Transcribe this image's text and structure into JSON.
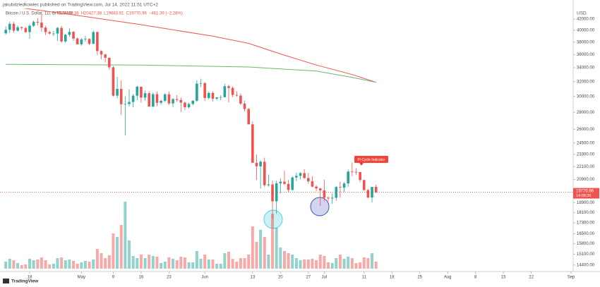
{
  "header": {
    "publisher": "jakubdzledkowiec published on TradingView.com, Jul 14, 2022 11:51 UTC+2",
    "symbol": "Bitcoin / U.S. Dollar, 1D, BITSTAMP",
    "values": [
      "O20235.36",
      "H20427.38",
      "L19683.91",
      "C19770.96",
      "−461.39 (−2.28%)"
    ]
  },
  "chart_data": {
    "type": "candlestick",
    "log_scale": true,
    "up_color": "#26a69a",
    "down_color": "#ef5350",
    "y_unit": "USD",
    "x": [
      "Apr 12",
      "Apr 13",
      "Apr 14",
      "Apr 15",
      "Apr 16",
      "Apr 17",
      "Apr 18",
      "Apr 19",
      "Apr 20",
      "Apr 21",
      "Apr 22",
      "Apr 23",
      "Apr 24",
      "Apr 25",
      "Apr 26",
      "Apr 27",
      "Apr 28",
      "Apr 29",
      "Apr 30",
      "May 1",
      "May 2",
      "May 3",
      "May 4",
      "May 5",
      "May 6",
      "May 7",
      "May 8",
      "May 9",
      "May 10",
      "May 11",
      "May 12",
      "May 13",
      "May 14",
      "May 15",
      "May 16",
      "May 17",
      "May 18",
      "May 19",
      "May 20",
      "May 21",
      "May 22",
      "May 23",
      "May 24",
      "May 25",
      "May 26",
      "May 27",
      "May 28",
      "May 29",
      "May 30",
      "May 31",
      "Jun 1",
      "Jun 2",
      "Jun 3",
      "Jun 4",
      "Jun 5",
      "Jun 6",
      "Jun 7",
      "Jun 8",
      "Jun 9",
      "Jun 10",
      "Jun 11",
      "Jun 12",
      "Jun 13",
      "Jun 14",
      "Jun 15",
      "Jun 16",
      "Jun 17",
      "Jun 18",
      "Jun 19",
      "Jun 20",
      "Jun 21",
      "Jun 22",
      "Jun 23",
      "Jun 24",
      "Jun 25",
      "Jun 26",
      "Jun 27",
      "Jun 28",
      "Jun 29",
      "Jun 30",
      "Jul 1",
      "Jul 2",
      "Jul 3",
      "Jul 4",
      "Jul 5",
      "Jul 6",
      "Jul 7",
      "Jul 8",
      "Jul 9",
      "Jul 10",
      "Jul 11",
      "Jul 12",
      "Jul 13",
      "Jul 14"
    ],
    "ohlc": [
      [
        39500,
        40700,
        39250,
        40100
      ],
      [
        40100,
        41550,
        39550,
        41150
      ],
      [
        41150,
        41500,
        39560,
        39940
      ],
      [
        39940,
        40860,
        39780,
        40550
      ],
      [
        40550,
        40700,
        40020,
        40400
      ],
      [
        40400,
        40600,
        39550,
        39700
      ],
      [
        39700,
        41100,
        38550,
        40800
      ],
      [
        40800,
        41750,
        40580,
        41500
      ],
      [
        41500,
        42200,
        40850,
        41370
      ],
      [
        41370,
        42970,
        39770,
        40480
      ],
      [
        40480,
        40800,
        39200,
        39700
      ],
      [
        39700,
        39950,
        39300,
        39450
      ],
      [
        39450,
        39900,
        39020,
        39450
      ],
      [
        39450,
        40600,
        38200,
        40430
      ],
      [
        40430,
        40800,
        37900,
        38120
      ],
      [
        38120,
        39450,
        37880,
        39240
      ],
      [
        39240,
        40350,
        38880,
        39740
      ],
      [
        39740,
        39900,
        38200,
        38600
      ],
      [
        38600,
        38800,
        37600,
        37640
      ],
      [
        37640,
        38700,
        37400,
        38470
      ],
      [
        38470,
        39100,
        38100,
        38530
      ],
      [
        38530,
        38650,
        37530,
        37730
      ],
      [
        37730,
        39950,
        37680,
        39700
      ],
      [
        39700,
        39800,
        35900,
        36560
      ],
      [
        36560,
        36650,
        35300,
        36010
      ],
      [
        36010,
        36140,
        34780,
        35500
      ],
      [
        35500,
        35500,
        33700,
        34060
      ],
      [
        34060,
        34250,
        30000,
        30100
      ],
      [
        30100,
        32650,
        29750,
        31000
      ],
      [
        31000,
        32150,
        27700,
        29000
      ],
      [
        29000,
        30000,
        25300,
        29030
      ],
      [
        29030,
        30950,
        28700,
        29280
      ],
      [
        29280,
        30300,
        28620,
        30100
      ],
      [
        30100,
        31400,
        29500,
        31300
      ],
      [
        31300,
        31300,
        29200,
        29850
      ],
      [
        29850,
        30780,
        29450,
        30420
      ],
      [
        30420,
        30680,
        28700,
        28700
      ],
      [
        28700,
        30500,
        28650,
        30290
      ],
      [
        30290,
        30650,
        28750,
        29180
      ],
      [
        29180,
        29620,
        28970,
        29430
      ],
      [
        29430,
        30420,
        29240,
        30280
      ],
      [
        30280,
        30650,
        28900,
        29100
      ],
      [
        29100,
        29800,
        28630,
        29650
      ],
      [
        29650,
        30180,
        29300,
        29540
      ],
      [
        29540,
        29850,
        28050,
        29200
      ],
      [
        29200,
        29350,
        28300,
        28620
      ],
      [
        28620,
        29200,
        28480,
        29030
      ],
      [
        29030,
        29540,
        28850,
        29440
      ],
      [
        29440,
        32200,
        29300,
        31720
      ],
      [
        31720,
        32400,
        31250,
        31790
      ],
      [
        31790,
        31950,
        29400,
        29800
      ],
      [
        29800,
        30650,
        29600,
        30450
      ],
      [
        30450,
        30650,
        29350,
        29700
      ],
      [
        29700,
        29950,
        29500,
        29860
      ],
      [
        29860,
        30150,
        29500,
        29900
      ],
      [
        29900,
        31700,
        29880,
        31370
      ],
      [
        31370,
        31550,
        29250,
        31130
      ],
      [
        31130,
        31330,
        29900,
        30200
      ],
      [
        30200,
        30700,
        29950,
        30110
      ],
      [
        30110,
        30380,
        28880,
        29080
      ],
      [
        29080,
        29450,
        28100,
        28400
      ],
      [
        28400,
        28550,
        26600,
        26570
      ],
      [
        26570,
        26900,
        22600,
        22470
      ],
      [
        22470,
        23300,
        20850,
        22130
      ],
      [
        22130,
        22700,
        20080,
        22580
      ],
      [
        22580,
        22980,
        20250,
        20380
      ],
      [
        20380,
        21350,
        20250,
        20450
      ],
      [
        20450,
        20800,
        17600,
        19000
      ],
      [
        19000,
        20780,
        18000,
        20550
      ],
      [
        20550,
        21000,
        19650,
        20700
      ],
      [
        20700,
        21700,
        20400,
        20500
      ],
      [
        20500,
        20850,
        19770,
        19970
      ],
      [
        19970,
        21200,
        19900,
        21080
      ],
      [
        21080,
        21530,
        20750,
        21230
      ],
      [
        21230,
        21560,
        20900,
        21490
      ],
      [
        21490,
        21850,
        20960,
        21030
      ],
      [
        21030,
        21500,
        20530,
        20730
      ],
      [
        20730,
        21180,
        20200,
        20260
      ],
      [
        20260,
        20400,
        19850,
        20100
      ],
      [
        20100,
        20150,
        18630,
        19930
      ],
      [
        19930,
        20880,
        19000,
        19300
      ],
      [
        19300,
        19420,
        19000,
        19240
      ],
      [
        19240,
        19650,
        18800,
        19300
      ],
      [
        19300,
        20300,
        19050,
        20220
      ],
      [
        20220,
        20700,
        19300,
        20170
      ],
      [
        20170,
        20650,
        19770,
        20540
      ],
      [
        20540,
        21830,
        20250,
        21630
      ],
      [
        21630,
        22500,
        21200,
        21600
      ],
      [
        21600,
        21950,
        21330,
        21580
      ],
      [
        21580,
        21600,
        20650,
        20850
      ],
      [
        20850,
        20860,
        19900,
        19960
      ],
      [
        19960,
        20050,
        19250,
        19320
      ],
      [
        19320,
        20250,
        18900,
        20230
      ],
      [
        20235.36,
        20427.38,
        19683.91,
        19770.96
      ]
    ],
    "volume": [
      10,
      14,
      12,
      8,
      5,
      6,
      14,
      12,
      13,
      16,
      12,
      6,
      7,
      15,
      16,
      12,
      13,
      11,
      7,
      9,
      11,
      10,
      13,
      28,
      22,
      15,
      19,
      50,
      45,
      62,
      95,
      40,
      18,
      15,
      20,
      15,
      20,
      18,
      17,
      8,
      10,
      16,
      14,
      12,
      17,
      16,
      9,
      9,
      25,
      14,
      20,
      13,
      13,
      7,
      7,
      22,
      24,
      14,
      10,
      15,
      15,
      20,
      60,
      38,
      55,
      45,
      20,
      78,
      58,
      30,
      25,
      22,
      20,
      15,
      12,
      13,
      13,
      14,
      12,
      20,
      18,
      9,
      8,
      15,
      20,
      14,
      17,
      15,
      8,
      9,
      16,
      15,
      22,
      10
    ],
    "volume_lim": [
      0,
      100
    ],
    "lines": [
      {
        "color": "#ef5350",
        "x": [
          "Apr 12",
          "Apr 28",
          "May 16",
          "Jun 3",
          "Jun 12",
          "Jun 20",
          "Jun 29",
          "Jul 8",
          "Jul 14"
        ],
        "values": [
          44500,
          42900,
          41000,
          39000,
          37800,
          36100,
          34400,
          33000,
          31900
        ]
      },
      {
        "color": "#66bb6a",
        "x": [
          "Apr 12",
          "May 16",
          "Jun 12",
          "Jun 29",
          "Jul 8",
          "Jul 14"
        ],
        "values": [
          34500,
          34400,
          34100,
          33500,
          32600,
          31900
        ]
      }
    ],
    "ylim": [
      14000,
      44000
    ],
    "yticks": [
      {
        "value": 42000,
        "label": "42000.00"
      },
      {
        "value": 40000,
        "label": "40000.00"
      },
      {
        "value": 38000,
        "label": "38000.00"
      },
      {
        "value": 36000,
        "label": "36000.00"
      },
      {
        "value": 34000,
        "label": "34000.00"
      },
      {
        "value": 32000,
        "label": "32000.00"
      },
      {
        "value": 30000,
        "label": "30000.00"
      },
      {
        "value": 28000,
        "label": "28000.00"
      },
      {
        "value": 26000,
        "label": "26000.00"
      },
      {
        "value": 24500,
        "label": "24500.00"
      },
      {
        "value": 23300,
        "label": "23300.00"
      },
      {
        "value": 22100,
        "label": "22100.00"
      },
      {
        "value": 20900,
        "label": "20900.00"
      },
      {
        "value": 18900,
        "label": "18900.00"
      },
      {
        "value": 18100,
        "label": "18100.00"
      },
      {
        "value": 17300,
        "label": "17300.00"
      },
      {
        "value": 16500,
        "label": "16500.00"
      },
      {
        "value": 15800,
        "label": "15800.00"
      },
      {
        "value": 15100,
        "label": "15100.00"
      },
      {
        "value": 14400,
        "label": "14400.00"
      }
    ],
    "xticks": [
      {
        "value": "Apr 18",
        "label": "18"
      },
      {
        "value": "May 1",
        "label": "May"
      },
      {
        "value": "May 9",
        "label": "9"
      },
      {
        "value": "May 16",
        "label": "16"
      },
      {
        "value": "May 23",
        "label": "23"
      },
      {
        "value": "Jun 1",
        "label": "Jun"
      },
      {
        "value": "Jun 13",
        "label": "13"
      },
      {
        "value": "Jun 20",
        "label": "20"
      },
      {
        "value": "Jun 27",
        "label": "27"
      },
      {
        "value": "Jul 1",
        "label": "Jul"
      },
      {
        "value": "Jul 11",
        "label": "11"
      },
      {
        "value": "Jul 18",
        "label": "18"
      },
      {
        "value": "Jul 25",
        "label": "25"
      },
      {
        "value": "Aug 1",
        "label": "Aug"
      },
      {
        "value": "Aug 8",
        "label": "8"
      },
      {
        "value": "Aug 15",
        "label": "15"
      },
      {
        "value": "Aug 22",
        "label": "22"
      },
      {
        "value": "Sep 1",
        "label": "Sep"
      }
    ],
    "last_price_label": "19770.96",
    "countdown": "14:08:36",
    "annotation": "Pi Cycle Indicator",
    "logo": "TradingView"
  }
}
